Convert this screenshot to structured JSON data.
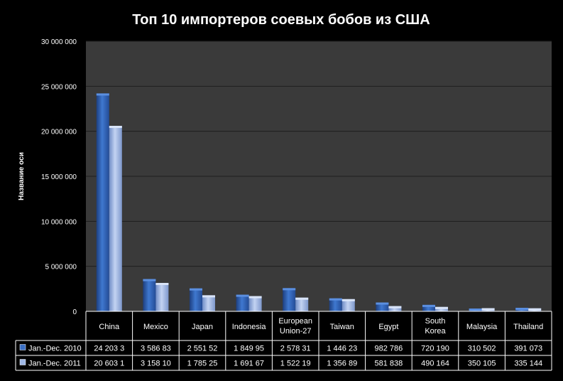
{
  "colors": {
    "background": "#000000",
    "plot_area": "#3a3a3a",
    "gridline": "#1e1e1e",
    "series_2010": "#3a6fc4",
    "series_2011": "#9fb8e6"
  },
  "icons": {
    "legend_2010": "blue-square-icon",
    "legend_2011": "light-blue-square-icon"
  },
  "chart_data": {
    "type": "bar",
    "title": "Топ 10 импортеров соевых бобов из США",
    "ylabel": "Название оси",
    "xlabel": "",
    "ylim": [
      0,
      30000000
    ],
    "yticks": [
      0,
      5000000,
      10000000,
      15000000,
      20000000,
      25000000,
      30000000
    ],
    "ytick_labels": [
      "0",
      "5 000 000",
      "10 000 000",
      "15 000 000",
      "20 000 000",
      "25 000 000",
      "30 000 000"
    ],
    "grid": true,
    "legend": "data-table",
    "categories": [
      "China",
      "Mexico",
      "Japan",
      "Indonesia",
      "European Union-27",
      "Taiwan",
      "Egypt",
      "South Korea",
      "Malaysia",
      "Thailand"
    ],
    "series": [
      {
        "name": "Jan.-Dec. 2010",
        "values": [
          24203300,
          3586830,
          2551520,
          1849950,
          2578310,
          1446230,
          982786,
          720190,
          310502,
          391073
        ],
        "labels": [
          "24 203 3",
          "3 586 83",
          "2 551 52",
          "1 849 95",
          "2 578 31",
          "1 446 23",
          "982 786",
          "720 190",
          "310 502",
          "391 073"
        ]
      },
      {
        "name": "Jan.-Dec. 2011",
        "values": [
          20603100,
          3158100,
          1785250,
          1691670,
          1522190,
          1356890,
          581838,
          490164,
          350105,
          335144
        ],
        "labels": [
          "20 603 1",
          "3 158 10",
          "1 785 25",
          "1 691 67",
          "1 522 19",
          "1 356 89",
          "581 838",
          "490 164",
          "350 105",
          "335 144"
        ]
      }
    ]
  }
}
